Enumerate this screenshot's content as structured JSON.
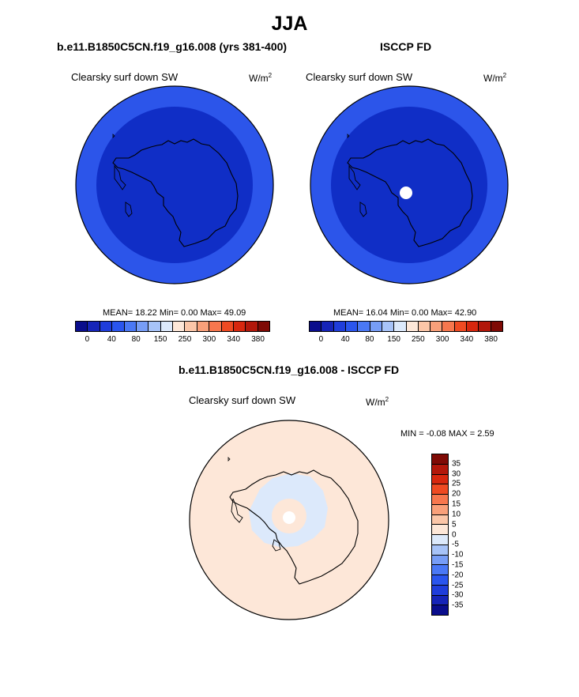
{
  "title": "JJA",
  "panels": [
    {
      "title": "b.e11.B1850C5CN.f19_g16.008 (yrs 381-400)",
      "label": "Clearsky surf down SW",
      "units": "W/m",
      "units_exp": "2",
      "stats": "MEAN=  18.22  Min=   0.00  Max=  49.09"
    },
    {
      "title": "ISCCP FD",
      "label": "Clearsky surf down SW",
      "units": "W/m",
      "units_exp": "2",
      "stats": "MEAN=  16.04  Min=   0.00  Max=  42.90"
    }
  ],
  "diff_panel": {
    "title": "b.e11.B1850C5CN.f19_g16.008 - ISCCP FD",
    "label": "Clearsky surf down SW",
    "units": "W/m",
    "units_exp": "2",
    "stats": "MIN =  -0.08 MAX =   2.59"
  },
  "abs_colorbar": {
    "colors": [
      "#0a0d8c",
      "#1624b8",
      "#1f3ddb",
      "#2a55ee",
      "#4a78f5",
      "#779df6",
      "#a7c3f8",
      "#dce9fb",
      "#fde7d8",
      "#fbc6a8",
      "#f9a07a",
      "#f7774e",
      "#ef4a22",
      "#d7270e",
      "#b2170a",
      "#7f0a05"
    ],
    "ticks": [
      "0",
      "40",
      "80",
      "150",
      "250",
      "300",
      "340",
      "380"
    ]
  },
  "diff_colorbar": {
    "colors": [
      "#7f0a05",
      "#b2170a",
      "#d7270e",
      "#ef4a22",
      "#f7774e",
      "#f9a07a",
      "#fbc6a8",
      "#fde7d8",
      "#dce9fb",
      "#a7c3f8",
      "#779df6",
      "#4a78f5",
      "#2a55ee",
      "#1f3ddb",
      "#1624b8",
      "#0a0d8c"
    ],
    "ticks": [
      "35",
      "30",
      "25",
      "20",
      "15",
      "10",
      "5",
      "0",
      "-5",
      "-10",
      "-15",
      "-20",
      "-25",
      "-30",
      "-35"
    ]
  },
  "map_colors": {
    "outer_ring": "#2c55ea",
    "inner_disk": "#102ec6",
    "diff_background": "#fde7d8",
    "diff_ice": "#dce9fb",
    "missing": "#ffffff"
  }
}
